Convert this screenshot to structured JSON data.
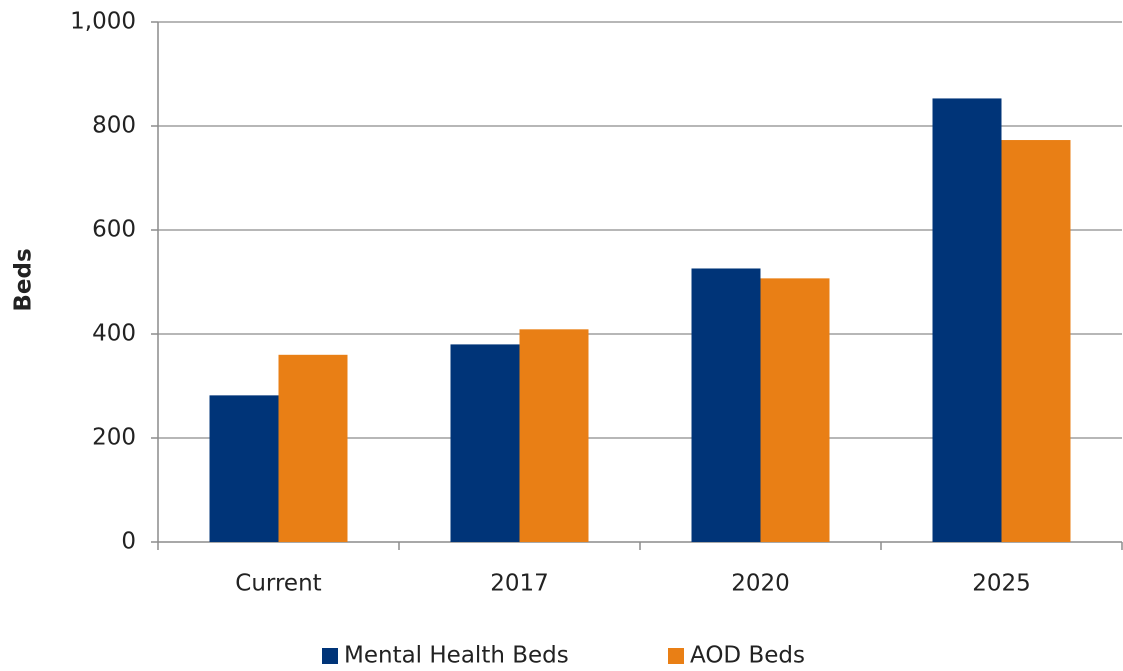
{
  "chart_data": {
    "type": "bar",
    "y_label": "Beds",
    "categories": [
      "Current",
      "2017",
      "2020",
      "2025"
    ],
    "series": [
      {
        "name": "Mental Health Beds",
        "color": "#003478",
        "values": [
          282,
          380,
          526,
          853
        ]
      },
      {
        "name": "AOD Beds",
        "color": "#e97f15",
        "values": [
          360,
          409,
          507,
          773
        ]
      }
    ],
    "ylim": [
      0,
      1000
    ],
    "yticks": [
      0,
      200,
      400,
      600,
      800,
      {
        "value": 1000,
        "label": "1,000"
      }
    ],
    "grid": true,
    "legend": "bottom"
  }
}
